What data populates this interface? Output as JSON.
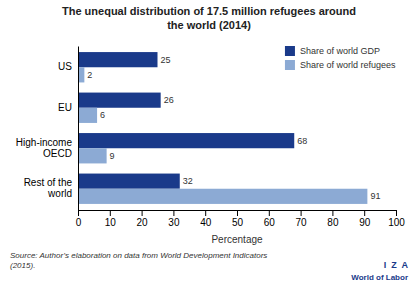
{
  "chart_data": {
    "type": "bar",
    "orientation": "horizontal",
    "title": "The unequal distribution of 17.5 million refugees around\nthe world (2014)",
    "categories": [
      "US",
      "EU",
      "High-income\nOECD",
      "Rest of the\nworld"
    ],
    "series": [
      {
        "name": "Share of world GDP",
        "color": "#1a3a8a",
        "values": [
          25,
          26,
          68,
          32
        ]
      },
      {
        "name": "Share of world refugees",
        "color": "#8caad4",
        "values": [
          2,
          6,
          9,
          91
        ]
      }
    ],
    "xlabel": "Percentage",
    "xlim": [
      0,
      100
    ],
    "xticks": [
      0,
      10,
      20,
      30,
      40,
      50,
      60,
      70,
      80,
      90,
      100
    ],
    "data_labels": true,
    "grid": false,
    "legend": "upper right",
    "annotations": [
      "Source: Author’s elaboration on data from World Development Indicators\n(2015).",
      "I  Z  A",
      "World of Labor"
    ]
  }
}
